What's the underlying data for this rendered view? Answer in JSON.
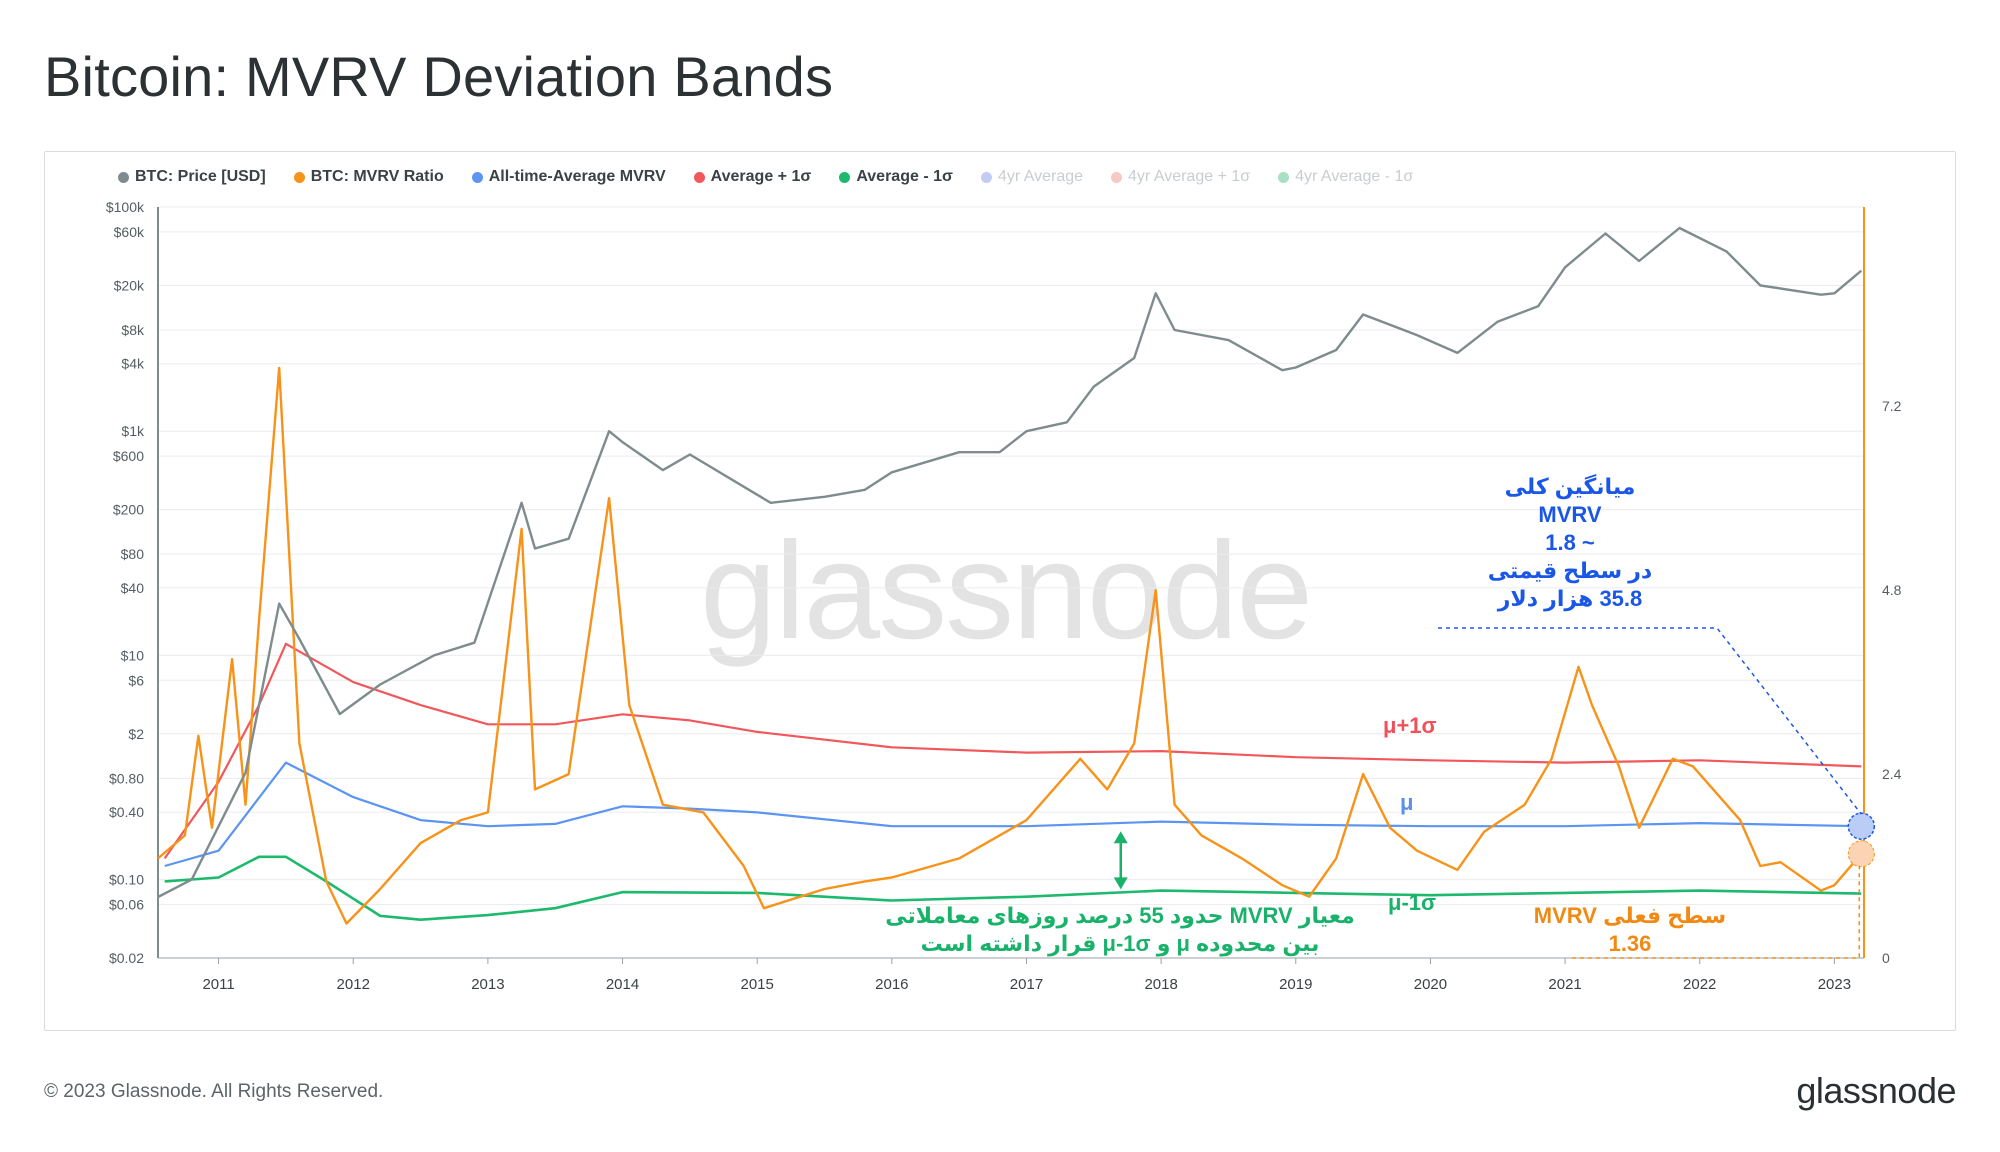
{
  "header": {
    "title": "Bitcoin: MVRV Deviation Bands"
  },
  "legend": [
    {
      "label": "BTC: Price [USD]",
      "color": "#7f8c8d",
      "active": true
    },
    {
      "label": "BTC: MVRV Ratio",
      "color": "#f7931a",
      "active": true
    },
    {
      "label": "All-time-Average MVRV",
      "color": "#5b95f1",
      "active": true
    },
    {
      "label": "Average + 1σ",
      "color": "#f1585b",
      "active": true
    },
    {
      "label": "Average - 1σ",
      "color": "#1db96d",
      "active": true
    },
    {
      "label": "4yr Average",
      "color": "#c3ccf5",
      "active": false
    },
    {
      "label": "4yr Average + 1σ",
      "color": "#f6c9c3",
      "active": false
    },
    {
      "label": "4yr Average - 1σ",
      "color": "#a9dfc4",
      "active": false
    }
  ],
  "watermark": "glassnode",
  "annotations": {
    "blue": [
      "میانگین کلی",
      "MVRV",
      "~ 1.8",
      "در سطح قیمتی",
      "35.8 هزار دلار"
    ],
    "green": [
      "معیار MVRV حدود 55 درصد روزهای معاملاتی",
      "بین  محدوده  μ و μ-1σ قرار داشته است"
    ],
    "orange": [
      "سطح فعلی MVRV",
      "1.36"
    ],
    "band_upper": "μ+1σ",
    "band_mean": "μ",
    "band_lower": "μ-1σ"
  },
  "footer": {
    "copyright": "© 2023 Glassnode. All Rights Reserved.",
    "logo": "glassnode"
  },
  "chart_data": {
    "type": "line",
    "x_axis": {
      "type": "date",
      "ticks": [
        "2011",
        "2012",
        "2013",
        "2014",
        "2015",
        "2016",
        "2017",
        "2018",
        "2019",
        "2020",
        "2021",
        "2022",
        "2023"
      ],
      "range": [
        "2010-07-18",
        "2023-03-20"
      ]
    },
    "y_left": {
      "scale": "log",
      "label": "",
      "ticks": [
        "$100k",
        "$60k",
        "$20k",
        "$8k",
        "$4k",
        "$1k",
        "$600",
        "$200",
        "$80",
        "$40",
        "$10",
        "$6",
        "$2",
        "$0.80",
        "$0.40",
        "$0.10",
        "$0.06",
        "$0.02"
      ],
      "range": [
        0.02,
        100000
      ]
    },
    "y_right": {
      "scale": "linear",
      "ticks": [
        "7.2",
        "4.8",
        "2.4",
        "0"
      ],
      "range": [
        0,
        9.8
      ]
    },
    "grid": true,
    "legend_position": "top-left",
    "series": [
      {
        "name": "BTC: Price [USD]",
        "axis": "left",
        "x": [
          2010.55,
          2010.8,
          2011.0,
          2011.2,
          2011.45,
          2011.6,
          2011.9,
          2012.2,
          2012.6,
          2012.9,
          2013.25,
          2013.35,
          2013.6,
          2013.9,
          2014.0,
          2014.3,
          2014.5,
          2014.9,
          2015.1,
          2015.5,
          2015.8,
          2016.0,
          2016.5,
          2016.8,
          2017.0,
          2017.3,
          2017.5,
          2017.8,
          2017.96,
          2018.1,
          2018.5,
          2018.9,
          2019.0,
          2019.3,
          2019.5,
          2019.9,
          2020.2,
          2020.5,
          2020.8,
          2021.0,
          2021.3,
          2021.55,
          2021.85,
          2022.2,
          2022.45,
          2022.9,
          2023.0,
          2023.2
        ],
        "values": [
          0.07,
          0.1,
          0.3,
          0.9,
          29,
          14,
          3,
          5.5,
          10,
          13,
          230,
          90,
          110,
          1000,
          800,
          450,
          620,
          320,
          230,
          260,
          300,
          430,
          650,
          650,
          1000,
          1200,
          2500,
          4500,
          17000,
          8000,
          6500,
          3500,
          3700,
          5300,
          11000,
          7200,
          5000,
          9500,
          13000,
          29000,
          58000,
          33000,
          65000,
          40000,
          20000,
          16500,
          17000,
          27000
        ]
      },
      {
        "name": "BTC: MVRV Ratio",
        "axis": "right",
        "x": [
          2010.55,
          2010.75,
          2010.85,
          2010.95,
          2011.1,
          2011.2,
          2011.3,
          2011.45,
          2011.6,
          2011.8,
          2011.95,
          2012.2,
          2012.5,
          2012.8,
          2013.0,
          2013.25,
          2013.35,
          2013.6,
          2013.9,
          2014.05,
          2014.3,
          2014.6,
          2014.9,
          2015.05,
          2015.5,
          2015.8,
          2016.0,
          2016.5,
          2016.8,
          2017.0,
          2017.4,
          2017.6,
          2017.8,
          2017.96,
          2018.1,
          2018.3,
          2018.6,
          2018.9,
          2019.1,
          2019.3,
          2019.5,
          2019.7,
          2019.9,
          2020.2,
          2020.4,
          2020.7,
          2020.9,
          2021.1,
          2021.2,
          2021.4,
          2021.55,
          2021.8,
          2021.95,
          2022.3,
          2022.45,
          2022.6,
          2022.9,
          2023.0,
          2023.2
        ],
        "values": [
          1.3,
          1.6,
          2.9,
          1.7,
          3.9,
          2.0,
          4.4,
          7.7,
          2.8,
          1.0,
          0.45,
          0.9,
          1.5,
          1.8,
          1.9,
          5.6,
          2.2,
          2.4,
          6.0,
          3.3,
          2.0,
          1.9,
          1.2,
          0.65,
          0.9,
          1.0,
          1.05,
          1.3,
          1.6,
          1.8,
          2.6,
          2.2,
          2.8,
          4.8,
          2.0,
          1.6,
          1.3,
          0.95,
          0.8,
          1.3,
          2.4,
          1.7,
          1.4,
          1.15,
          1.65,
          2.0,
          2.6,
          3.8,
          3.3,
          2.5,
          1.7,
          2.6,
          2.5,
          1.8,
          1.2,
          1.25,
          0.88,
          0.95,
          1.36
        ]
      },
      {
        "name": "All-time-Average MVRV",
        "axis": "right",
        "x": [
          2010.6,
          2011.0,
          2011.5,
          2012.0,
          2012.5,
          2013.0,
          2013.5,
          2014.0,
          2014.5,
          2015.0,
          2016.0,
          2017.0,
          2018.0,
          2019.0,
          2020.0,
          2021.0,
          2022.0,
          2023.2
        ],
        "values": [
          1.2,
          1.4,
          2.55,
          2.1,
          1.8,
          1.72,
          1.75,
          1.98,
          1.95,
          1.9,
          1.72,
          1.72,
          1.78,
          1.74,
          1.72,
          1.72,
          1.76,
          1.72
        ]
      },
      {
        "name": "Average + 1σ",
        "axis": "right",
        "x": [
          2010.6,
          2011.0,
          2011.3,
          2011.5,
          2012.0,
          2012.5,
          2013.0,
          2013.5,
          2014.0,
          2014.5,
          2015.0,
          2016.0,
          2017.0,
          2018.0,
          2019.0,
          2020.0,
          2021.0,
          2022.0,
          2023.2
        ],
        "values": [
          1.3,
          2.3,
          3.3,
          4.1,
          3.6,
          3.3,
          3.05,
          3.05,
          3.18,
          3.1,
          2.95,
          2.75,
          2.68,
          2.7,
          2.62,
          2.58,
          2.55,
          2.58,
          2.5
        ]
      },
      {
        "name": "Average - 1σ",
        "axis": "right",
        "x": [
          2010.6,
          2011.0,
          2011.3,
          2011.5,
          2011.8,
          2012.2,
          2012.5,
          2013.0,
          2013.5,
          2014.0,
          2015.0,
          2016.0,
          2017.0,
          2018.0,
          2019.0,
          2020.0,
          2021.0,
          2022.0,
          2023.2
        ],
        "values": [
          1.0,
          1.05,
          1.32,
          1.32,
          1.0,
          0.55,
          0.5,
          0.56,
          0.65,
          0.86,
          0.85,
          0.75,
          0.8,
          0.88,
          0.85,
          0.82,
          0.85,
          0.88,
          0.84
        ]
      }
    ]
  }
}
